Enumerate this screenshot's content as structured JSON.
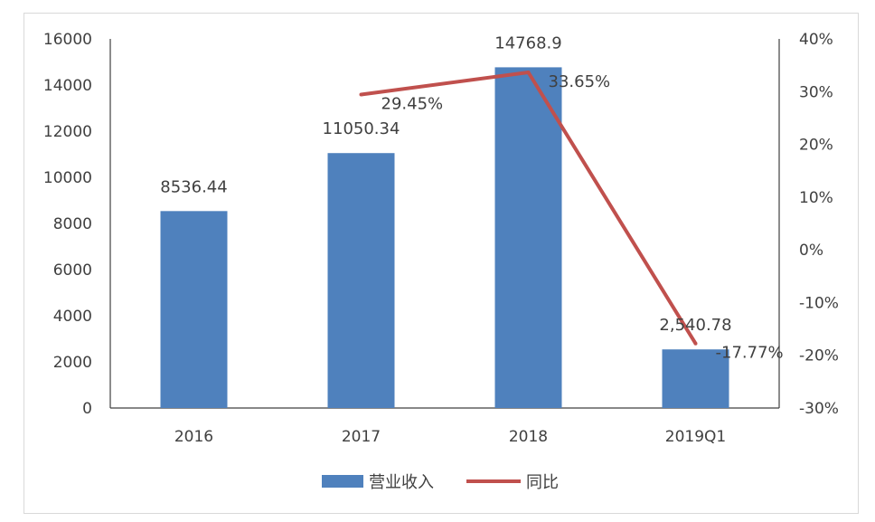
{
  "chart_data": {
    "type": "bar",
    "categories": [
      "2016",
      "2017",
      "2018",
      "2019Q1"
    ],
    "series": [
      {
        "name": "营业收入",
        "type": "bar",
        "axis": "left",
        "values": [
          8536.44,
          11050.34,
          14768.9,
          2540.78
        ],
        "labels": [
          "8536.44",
          "11050.34",
          "14768.9",
          "2,540.78"
        ]
      },
      {
        "name": "同比",
        "type": "line",
        "axis": "right",
        "values": [
          null,
          29.45,
          33.65,
          -17.77
        ],
        "labels": [
          "",
          "29.45%",
          "33.65%",
          "-17.77%"
        ]
      }
    ],
    "y_left": {
      "ylim": [
        0,
        16000
      ],
      "ticks": [
        "0",
        "2000",
        "4000",
        "6000",
        "8000",
        "10000",
        "12000",
        "14000",
        "16000"
      ]
    },
    "y_right": {
      "ylim": [
        -30,
        40
      ],
      "ticks": [
        "-30%",
        "-20%",
        "-10%",
        "0%",
        "10%",
        "20%",
        "30%",
        "40%"
      ]
    },
    "legend": {
      "position": "bottom"
    },
    "grid": false
  },
  "colors": {
    "bar": "#4f81bd",
    "line": "#c0504d",
    "axis": "#404040"
  }
}
